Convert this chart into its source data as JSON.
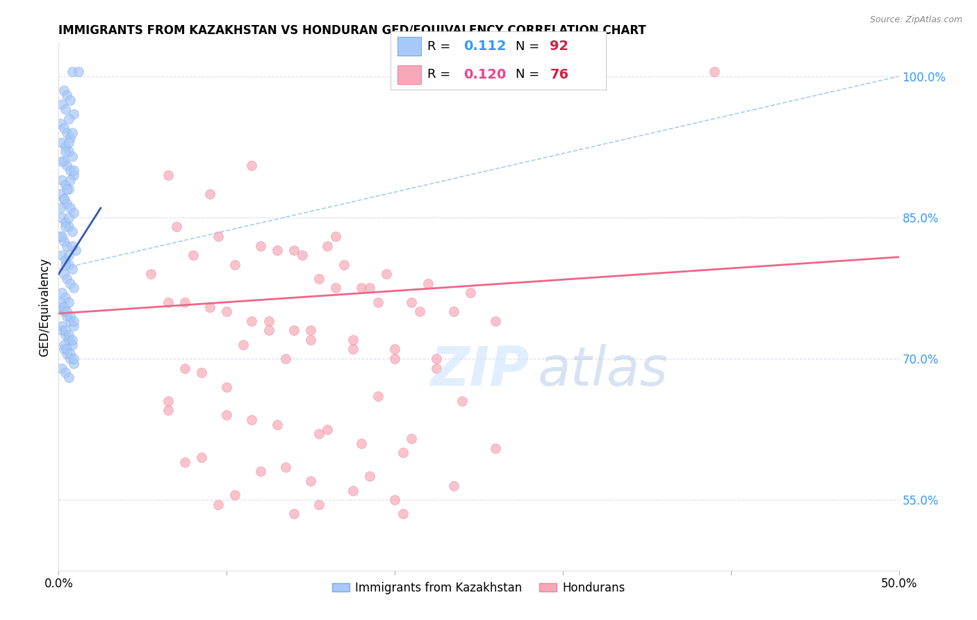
{
  "title": "IMMIGRANTS FROM KAZAKHSTAN VS HONDURAN GED/EQUIVALENCY CORRELATION CHART",
  "source": "Source: ZipAtlas.com",
  "ylabel": "GED/Equivalency",
  "ytick_labels": [
    "100.0%",
    "85.0%",
    "70.0%",
    "55.0%"
  ],
  "ytick_positions": [
    1.0,
    0.85,
    0.7,
    0.55
  ],
  "xlim": [
    0.0,
    0.5
  ],
  "ylim": [
    0.475,
    1.035
  ],
  "legend": {
    "kaz_R": "0.112",
    "kaz_N": "92",
    "hon_R": "0.120",
    "hon_N": "76"
  },
  "kaz_color": "#a8c8f8",
  "kaz_edge_color": "#7aaae8",
  "hon_color": "#f8a8b8",
  "hon_edge_color": "#e888a0",
  "kaz_line_color": "#3355bb",
  "hon_line_color": "#ee6688",
  "dash_line_color": "#aaccee",
  "grid_color": "#ddddee",
  "background_color": "#ffffff",
  "kaz_R_color": "#3399ff",
  "kaz_N_color": "#cc2244",
  "hon_R_color": "#ee4488",
  "hon_N_color": "#cc2244",
  "kaz_scatter_x": [
    0.008,
    0.012,
    0.003,
    0.005,
    0.007,
    0.002,
    0.004,
    0.009,
    0.006,
    0.001,
    0.003,
    0.005,
    0.007,
    0.002,
    0.004,
    0.006,
    0.008,
    0.003,
    0.005,
    0.007,
    0.009,
    0.002,
    0.004,
    0.006,
    0.001,
    0.003,
    0.005,
    0.007,
    0.009,
    0.002,
    0.004,
    0.006,
    0.008,
    0.001,
    0.003,
    0.005,
    0.01,
    0.002,
    0.004,
    0.006,
    0.008,
    0.003,
    0.005,
    0.007,
    0.009,
    0.002,
    0.004,
    0.006,
    0.001,
    0.003,
    0.005,
    0.007,
    0.009,
    0.002,
    0.004,
    0.006,
    0.008,
    0.003,
    0.005,
    0.007,
    0.009,
    0.002,
    0.004,
    0.006,
    0.001,
    0.003,
    0.005,
    0.007,
    0.009,
    0.002,
    0.004,
    0.006,
    0.008,
    0.003,
    0.005,
    0.007,
    0.009,
    0.004,
    0.006,
    0.008,
    0.002,
    0.004,
    0.006,
    0.001,
    0.003,
    0.005,
    0.007,
    0.009,
    0.002,
    0.004,
    0.006,
    0.008
  ],
  "kaz_scatter_y": [
    1.005,
    1.005,
    0.985,
    0.98,
    0.975,
    0.97,
    0.965,
    0.96,
    0.955,
    0.95,
    0.945,
    0.94,
    0.935,
    0.93,
    0.925,
    0.92,
    0.915,
    0.91,
    0.905,
    0.9,
    0.895,
    0.89,
    0.885,
    0.88,
    0.875,
    0.87,
    0.865,
    0.86,
    0.855,
    0.85,
    0.845,
    0.84,
    0.835,
    0.83,
    0.825,
    0.82,
    0.815,
    0.81,
    0.805,
    0.8,
    0.795,
    0.79,
    0.785,
    0.78,
    0.775,
    0.77,
    0.765,
    0.76,
    0.755,
    0.75,
    0.745,
    0.74,
    0.735,
    0.73,
    0.725,
    0.72,
    0.715,
    0.71,
    0.705,
    0.7,
    0.695,
    0.69,
    0.685,
    0.68,
    0.76,
    0.755,
    0.75,
    0.745,
    0.74,
    0.735,
    0.73,
    0.725,
    0.72,
    0.715,
    0.71,
    0.705,
    0.7,
    0.8,
    0.81,
    0.82,
    0.83,
    0.84,
    0.85,
    0.86,
    0.87,
    0.88,
    0.89,
    0.9,
    0.91,
    0.92,
    0.93,
    0.94
  ],
  "hon_scatter_x": [
    0.39,
    0.065,
    0.09,
    0.115,
    0.14,
    0.165,
    0.055,
    0.08,
    0.105,
    0.13,
    0.155,
    0.18,
    0.07,
    0.095,
    0.12,
    0.145,
    0.17,
    0.195,
    0.22,
    0.245,
    0.065,
    0.09,
    0.115,
    0.14,
    0.165,
    0.19,
    0.215,
    0.075,
    0.1,
    0.125,
    0.15,
    0.175,
    0.2,
    0.225,
    0.075,
    0.1,
    0.125,
    0.15,
    0.175,
    0.2,
    0.225,
    0.085,
    0.11,
    0.135,
    0.16,
    0.185,
    0.21,
    0.235,
    0.26,
    0.065,
    0.1,
    0.13,
    0.155,
    0.18,
    0.205,
    0.075,
    0.12,
    0.15,
    0.175,
    0.2,
    0.095,
    0.14,
    0.19,
    0.24,
    0.065,
    0.115,
    0.16,
    0.21,
    0.26,
    0.085,
    0.135,
    0.185,
    0.235,
    0.105,
    0.155,
    0.205
  ],
  "hon_scatter_y": [
    1.005,
    0.895,
    0.875,
    0.905,
    0.815,
    0.83,
    0.79,
    0.81,
    0.8,
    0.815,
    0.785,
    0.775,
    0.84,
    0.83,
    0.82,
    0.81,
    0.8,
    0.79,
    0.78,
    0.77,
    0.76,
    0.755,
    0.74,
    0.73,
    0.775,
    0.76,
    0.75,
    0.76,
    0.75,
    0.74,
    0.73,
    0.72,
    0.71,
    0.7,
    0.69,
    0.67,
    0.73,
    0.72,
    0.71,
    0.7,
    0.69,
    0.685,
    0.715,
    0.7,
    0.82,
    0.775,
    0.76,
    0.75,
    0.74,
    0.655,
    0.64,
    0.63,
    0.62,
    0.61,
    0.6,
    0.59,
    0.58,
    0.57,
    0.56,
    0.55,
    0.545,
    0.535,
    0.66,
    0.655,
    0.645,
    0.635,
    0.625,
    0.615,
    0.605,
    0.595,
    0.585,
    0.575,
    0.565,
    0.555,
    0.545,
    0.535
  ],
  "kaz_trend_x": [
    0.0,
    0.025
  ],
  "kaz_trend_y": [
    0.79,
    0.86
  ],
  "dash_trend_x": [
    0.0,
    0.5
  ],
  "dash_trend_y": [
    0.795,
    1.0
  ],
  "hon_trend_x": [
    0.0,
    0.5
  ],
  "hon_trend_y": [
    0.748,
    0.808
  ]
}
